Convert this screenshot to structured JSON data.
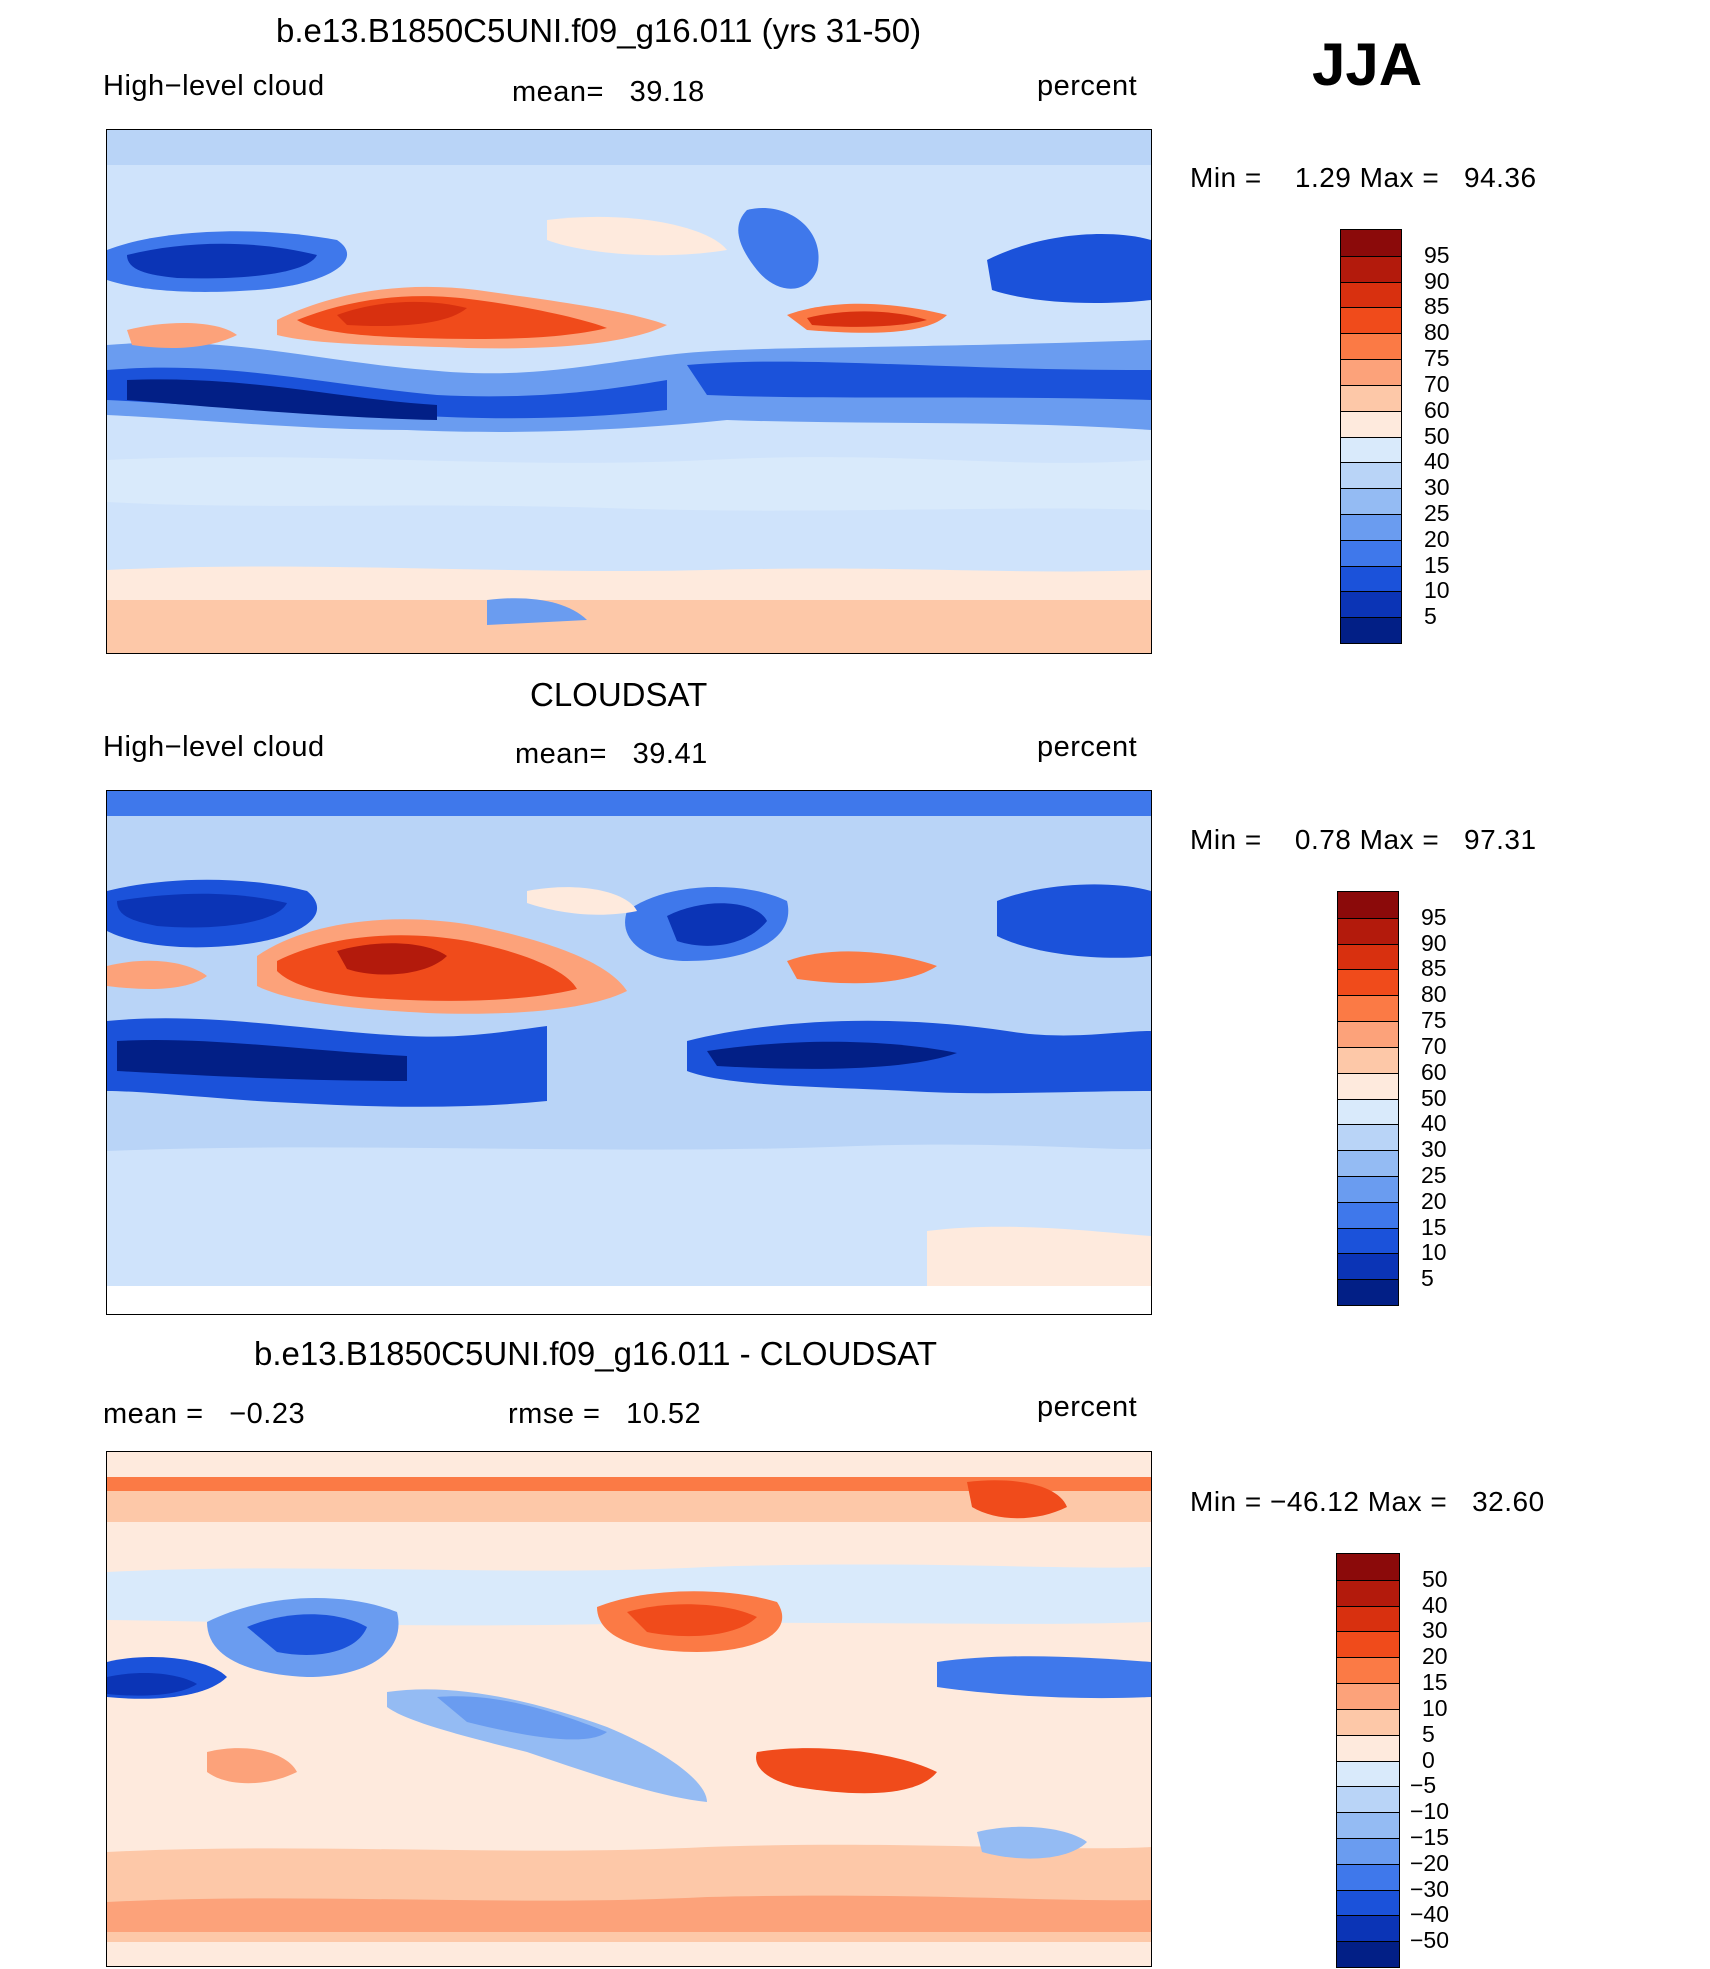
{
  "season": "JJA",
  "panels": [
    {
      "id": "model",
      "title": "b.e13.B1850C5UNI.f09_g16.011 (yrs 31-50)",
      "left_label": "High−level cloud",
      "center_label": "mean=   39.18",
      "right_label": "percent",
      "min_max": "Min =    1.29 Max =   94.36"
    },
    {
      "id": "obs",
      "title": "CLOUDSAT",
      "left_label": "High−level cloud",
      "center_label": "mean=   39.41",
      "right_label": "percent",
      "min_max": "Min =    0.78 Max =   97.31"
    },
    {
      "id": "diff",
      "title": "b.e13.B1850C5UNI.f09_g16.011 - CLOUDSAT",
      "left_label": "mean =   −0.23",
      "center_label": "rmse =   10.52",
      "right_label": "percent",
      "min_max": "Min = −46.12 Max =   32.60"
    }
  ],
  "colorbars": {
    "abs_levels": [
      "95",
      "90",
      "85",
      "80",
      "75",
      "70",
      "60",
      "50",
      "40",
      "30",
      "25",
      "20",
      "15",
      "10",
      "5"
    ],
    "abs_colors": [
      "#8b0a0a",
      "#b31a0c",
      "#d8300f",
      "#f04b1b",
      "#fb7a45",
      "#fca27a",
      "#fdc8a8",
      "#feeadd",
      "#d9eafb",
      "#b9d4f7",
      "#94bbf3",
      "#6a9cf0",
      "#3f78eb",
      "#1b52da",
      "#0b34b6",
      "#021f86"
    ],
    "diff_levels": [
      "50",
      "40",
      "30",
      "20",
      "15",
      "10",
      "5",
      "0",
      "−5",
      "−10",
      "−15",
      "−20",
      "−30",
      "−40",
      "−50"
    ],
    "diff_colors": [
      "#8b0a0a",
      "#b31a0c",
      "#d8300f",
      "#f04b1b",
      "#fb7a45",
      "#fca27a",
      "#fdc8a8",
      "#feeadd",
      "#d9eafb",
      "#b9d4f7",
      "#94bbf3",
      "#6a9cf0",
      "#3f78eb",
      "#1b52da",
      "#0b34b6",
      "#021f86"
    ]
  },
  "chart_data": [
    {
      "type": "heatmap",
      "title": "b.e13.B1850C5UNI.f09_g16.011 (yrs 31-50)",
      "variable": "High-level cloud",
      "units": "percent",
      "mean": 39.18,
      "min": 1.29,
      "max": 94.36,
      "levels": [
        5,
        10,
        15,
        20,
        25,
        30,
        40,
        50,
        60,
        70,
        75,
        80,
        85,
        90,
        95
      ]
    },
    {
      "type": "heatmap",
      "title": "CLOUDSAT",
      "variable": "High-level cloud",
      "units": "percent",
      "mean": 39.41,
      "min": 0.78,
      "max": 97.31,
      "levels": [
        5,
        10,
        15,
        20,
        25,
        30,
        40,
        50,
        60,
        70,
        75,
        80,
        85,
        90,
        95
      ]
    },
    {
      "type": "heatmap",
      "title": "b.e13.B1850C5UNI.f09_g16.011 - CLOUDSAT",
      "units": "percent",
      "mean": -0.23,
      "rmse": 10.52,
      "min": -46.12,
      "max": 32.6,
      "levels": [
        -50,
        -40,
        -30,
        -20,
        -15,
        -10,
        -5,
        0,
        5,
        10,
        15,
        20,
        30,
        40,
        50
      ]
    }
  ]
}
